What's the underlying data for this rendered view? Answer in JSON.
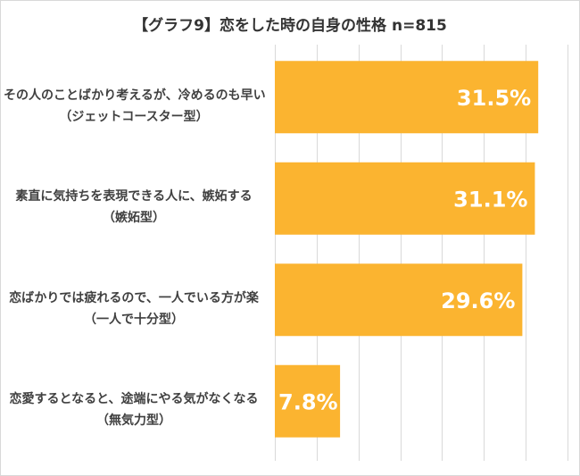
{
  "title": "【グラフ9】恋をした時の自身の性格",
  "title_n": "n=815",
  "chart_data": {
    "type": "bar",
    "orientation": "horizontal",
    "title": "【グラフ9】恋をした時の自身の性格 n=815",
    "categories": [
      [
        "その人のことばかり考えるが、冷めるのも早い",
        "（ジェットコースター型）"
      ],
      [
        "素直に気持ちを表現できる人に、嫉妬する",
        "（嫉妬型）"
      ],
      [
        "恋ばかりでは疲れるので、一人でいる方が楽",
        "（一人で十分型）"
      ],
      [
        "恋愛するとなると、途端にやる気がなくなる",
        "（無気力型）"
      ]
    ],
    "values": [
      31.5,
      31.1,
      29.6,
      7.8
    ],
    "value_labels": [
      "31.5%",
      "31.1%",
      "29.6%",
      "7.8%"
    ],
    "unit": "%",
    "xlim": [
      0,
      35
    ],
    "grid": true,
    "bar_color": "#fbb430",
    "grid_color": "#d9d9d9",
    "label_color": "#ffffff"
  }
}
